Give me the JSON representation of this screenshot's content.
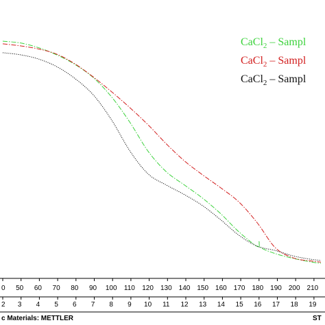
{
  "chart_data": {
    "type": "line",
    "title": "",
    "xlabel": "",
    "ylabel": "",
    "xlim": [
      40,
      215
    ],
    "ylim": [
      0,
      100
    ],
    "grid": false,
    "legend_position": "top-right",
    "x_ticks": [
      "0",
      "50",
      "60",
      "70",
      "80",
      "90",
      "100",
      "110",
      "120",
      "130",
      "140",
      "150",
      "160",
      "170",
      "180",
      "190",
      "200",
      "210"
    ],
    "minute_ticks": [
      "2",
      "3",
      "4",
      "5",
      "6",
      "7",
      "8",
      "9",
      "10",
      "11",
      "12",
      "13",
      "14",
      "15",
      "16",
      "17",
      "18",
      "19"
    ],
    "legend": [
      {
        "prefix": "CaCl",
        "sub": "2",
        "suffix": " – Sampl",
        "color": "#3cd23c"
      },
      {
        "prefix": "CaCl",
        "sub": "2",
        "suffix": " – Sampl",
        "color": "#d21e1e"
      },
      {
        "prefix": "CaCl",
        "sub": "2",
        "suffix": " – Sampl",
        "color": "#111111"
      }
    ],
    "series": [
      {
        "color": "#3cd23c",
        "style": "dash-dot",
        "x": [
          40,
          50,
          60,
          70,
          80,
          90,
          100,
          110,
          120,
          130,
          140,
          150,
          160,
          170,
          180,
          181,
          182,
          190,
          200,
          210,
          215
        ],
        "y": [
          94.3,
          93.5,
          91.5,
          88.5,
          84.5,
          79,
          71,
          60.5,
          48.5,
          40,
          34.5,
          29,
          22.5,
          15,
          9,
          11,
          8.5,
          6,
          4,
          2.5,
          2
        ]
      },
      {
        "color": "#d21e1e",
        "style": "dash-dot",
        "x": [
          40,
          50,
          60,
          70,
          80,
          90,
          100,
          110,
          120,
          130,
          140,
          150,
          160,
          170,
          180,
          190,
          200,
          210,
          215
        ],
        "y": [
          93.2,
          92.3,
          91,
          88.8,
          84.7,
          79.3,
          73.2,
          66.6,
          59.5,
          51.6,
          44.5,
          38.7,
          33.3,
          27.4,
          18.8,
          8.4,
          4.2,
          2.9,
          2.5
        ]
      },
      {
        "color": "#111111",
        "style": "dotted",
        "x": [
          40,
          50,
          60,
          70,
          80,
          90,
          100,
          110,
          120,
          130,
          140,
          150,
          160,
          170,
          180,
          190,
          200,
          210,
          215
        ],
        "y": [
          89.5,
          88.6,
          86.8,
          83.6,
          78.6,
          71.8,
          61.4,
          48.6,
          39.1,
          34.5,
          30.5,
          25.9,
          20,
          13.6,
          9.1,
          7.3,
          5,
          3.6,
          3.2
        ]
      }
    ]
  },
  "footer": {
    "left": "c Materials: METTLER",
    "right": "ST"
  }
}
